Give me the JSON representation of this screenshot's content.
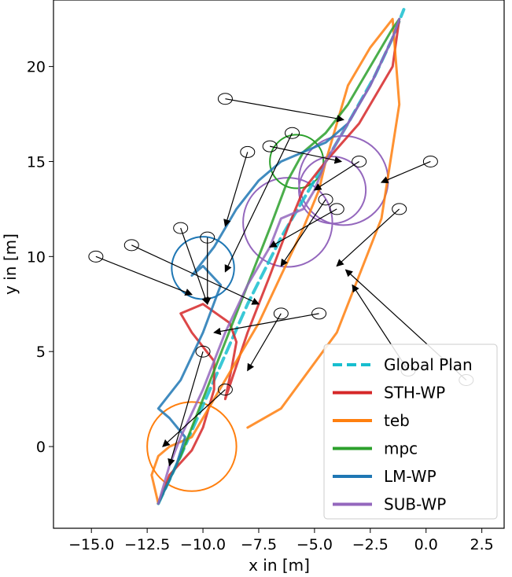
{
  "chart_data": {
    "type": "line",
    "title": "",
    "xlabel": "x in [m]",
    "ylabel": "y in [m]",
    "xlim": [
      -16.7,
      3.5
    ],
    "ylim": [
      -4.3,
      23.5
    ],
    "grid": false,
    "legend_position": "bottom-right",
    "xticks": [
      {
        "value": -15.0,
        "label": "−15.0"
      },
      {
        "value": -12.5,
        "label": "−12.5"
      },
      {
        "value": -10.0,
        "label": "−10.0"
      },
      {
        "value": -7.5,
        "label": "−7.5"
      },
      {
        "value": -5.0,
        "label": "−5.0"
      },
      {
        "value": -2.5,
        "label": "−2.5"
      },
      {
        "value": 0.0,
        "label": "0.0"
      },
      {
        "value": 2.5,
        "label": "2.5"
      }
    ],
    "yticks": [
      {
        "value": 0,
        "label": "0"
      },
      {
        "value": 5,
        "label": "5"
      },
      {
        "value": 10,
        "label": "10"
      },
      {
        "value": 15,
        "label": "15"
      },
      {
        "value": 20,
        "label": "20"
      }
    ],
    "legend": [
      {
        "name": "Global Plan",
        "color": "#17becf",
        "dashed": true
      },
      {
        "name": "STH-WP",
        "color": "#d62728",
        "dashed": false
      },
      {
        "name": "teb",
        "color": "#ff7f0e",
        "dashed": false
      },
      {
        "name": "mpc",
        "color": "#2ca02c",
        "dashed": false
      },
      {
        "name": "LM-WP",
        "color": "#1f77b4",
        "dashed": false
      },
      {
        "name": "SUB-WP",
        "color": "#9467bd",
        "dashed": false
      }
    ],
    "series": [
      {
        "name": "Global Plan",
        "color": "#17becf",
        "dashed": true,
        "x": [
          -12.0,
          -11.0,
          -9.5,
          -8.0,
          -6.5,
          -5.0,
          -3.5,
          -2.3,
          -1.5,
          -1.0
        ],
        "y": [
          -3.0,
          -0.5,
          3.5,
          7.5,
          11.0,
          14.0,
          17.0,
          19.5,
          21.5,
          23.0
        ]
      },
      {
        "name": "STH-WP",
        "color": "#d62728",
        "dashed": false,
        "x": [
          -12.0,
          -11.5,
          -10.5,
          -10.0,
          -9.5,
          -9.5,
          -10.5,
          -11.0,
          -10.0,
          -8.8,
          -8.5,
          -8.7,
          -9.0,
          -8.0,
          -7.0,
          -6.2,
          -5.5,
          -4.5,
          -3.0,
          -1.5,
          -1.2
        ],
        "y": [
          -3.0,
          -1.5,
          -0.2,
          1.0,
          3.0,
          4.5,
          6.0,
          7.0,
          7.5,
          6.5,
          5.5,
          4.2,
          2.5,
          6.0,
          9.0,
          11.5,
          13.5,
          15.0,
          17.0,
          20.0,
          22.5
        ]
      },
      {
        "name": "teb",
        "color": "#ff7f0e",
        "dashed": false,
        "x": [
          -12.0,
          -12.3,
          -12.0,
          -11.5,
          -10.5,
          -9.5,
          -8.5,
          -7.5,
          -6.5,
          -5.5,
          -4.8,
          -4.5,
          -4.0,
          -3.5,
          -2.5,
          -1.5,
          -1.2,
          -2.0,
          -4.0,
          -6.5,
          -8.0
        ],
        "y": [
          -3.0,
          -1.5,
          -0.5,
          0.0,
          0.5,
          2.5,
          4.5,
          6.5,
          9.0,
          11.5,
          13.5,
          15.0,
          17.0,
          19.0,
          21.0,
          22.5,
          18.0,
          12.0,
          6.0,
          2.0,
          1.0
        ]
      },
      {
        "name": "mpc",
        "color": "#2ca02c",
        "dashed": false,
        "x": [
          -12.0,
          -11.0,
          -10.0,
          -9.0,
          -8.0,
          -7.0,
          -6.2,
          -5.5,
          -4.5,
          -3.5,
          -2.5,
          -1.5,
          -1.2
        ],
        "y": [
          -3.0,
          -0.5,
          2.5,
          5.5,
          8.5,
          11.5,
          14.0,
          15.5,
          16.5,
          18.0,
          20.0,
          22.0,
          22.5
        ]
      },
      {
        "name": "LM-WP",
        "color": "#1f77b4",
        "dashed": false,
        "x": [
          -12.0,
          -11.2,
          -10.8,
          -11.5,
          -12.0,
          -11.0,
          -10.0,
          -9.2,
          -10.0,
          -10.5,
          -9.5,
          -8.5,
          -7.5,
          -6.5,
          -5.5,
          -4.5,
          -3.5,
          -2.5,
          -1.5,
          -1.2
        ],
        "y": [
          -3.0,
          -1.0,
          0.5,
          1.5,
          2.0,
          3.5,
          6.0,
          8.5,
          9.5,
          9.0,
          10.5,
          12.5,
          14.0,
          15.0,
          15.5,
          16.0,
          17.0,
          19.0,
          21.5,
          22.5
        ]
      },
      {
        "name": "SUB-WP",
        "color": "#9467bd",
        "dashed": false,
        "x": [
          -12.0,
          -11.5,
          -11.0,
          -10.0,
          -9.0,
          -8.0,
          -7.0,
          -6.5,
          -5.5,
          -5.0,
          -4.5,
          -3.5,
          -2.5,
          -1.5,
          -1.2
        ],
        "y": [
          -3.0,
          -1.0,
          0.5,
          3.0,
          6.0,
          8.5,
          10.5,
          12.0,
          12.5,
          13.5,
          15.0,
          17.0,
          19.0,
          21.5,
          22.5
        ]
      }
    ],
    "circles": [
      {
        "x": -10.5,
        "y": 0.0,
        "r": 2.0,
        "color": "#ff7f0e"
      },
      {
        "x": -10.0,
        "y": 9.4,
        "r": 1.4,
        "color": "#1f77b4"
      },
      {
        "x": -6.2,
        "y": 11.8,
        "r": 2.0,
        "color": "#9467bd"
      },
      {
        "x": -3.7,
        "y": 14.0,
        "r": 2.0,
        "color": "#9467bd"
      },
      {
        "x": -5.8,
        "y": 15.0,
        "r": 1.2,
        "color": "#2ca02c"
      },
      {
        "x": -4.2,
        "y": 13.5,
        "r": 1.5,
        "color": "#9467bd"
      }
    ],
    "waypoint_markers": [
      {
        "from": [
          -14.8,
          10.0
        ],
        "to": [
          -10.5,
          8.0
        ]
      },
      {
        "from": [
          -13.2,
          10.6
        ],
        "to": [
          -7.5,
          7.5
        ]
      },
      {
        "from": [
          -11.0,
          11.5
        ],
        "to": [
          -9.8,
          7.5
        ]
      },
      {
        "from": [
          -9.8,
          11.0
        ],
        "to": [
          -9.8,
          7.5
        ]
      },
      {
        "from": [
          -9.0,
          18.3
        ],
        "to": [
          -3.7,
          17.2
        ]
      },
      {
        "from": [
          -8.0,
          15.5
        ],
        "to": [
          -9.0,
          11.6
        ]
      },
      {
        "from": [
          -7.0,
          15.8
        ],
        "to": [
          -3.8,
          15.0
        ]
      },
      {
        "from": [
          -6.0,
          16.5
        ],
        "to": [
          -9.0,
          9.2
        ]
      },
      {
        "from": [
          -6.5,
          7.0
        ],
        "to": [
          -8.0,
          4.0
        ]
      },
      {
        "from": [
          -4.8,
          7.0
        ],
        "to": [
          -9.5,
          6.0
        ]
      },
      {
        "from": [
          0.2,
          15.0
        ],
        "to": [
          -2.0,
          13.9
        ]
      },
      {
        "from": [
          -1.2,
          12.5
        ],
        "to": [
          -4.0,
          9.5
        ]
      },
      {
        "from": [
          1.8,
          3.5
        ],
        "to": [
          -3.6,
          9.3
        ]
      },
      {
        "from": [
          -0.8,
          4.0
        ],
        "to": [
          -3.3,
          8.5
        ]
      },
      {
        "from": [
          -10.0,
          5.0
        ],
        "to": [
          -11.5,
          -1.0
        ]
      },
      {
        "from": [
          -9.0,
          3.0
        ],
        "to": [
          -11.8,
          0.0
        ]
      },
      {
        "from": [
          -4.0,
          12.5
        ],
        "to": [
          -7.0,
          10.5
        ]
      },
      {
        "from": [
          -3.0,
          15.0
        ],
        "to": [
          -5.0,
          13.5
        ]
      },
      {
        "from": [
          -4.5,
          13.0
        ],
        "to": [
          -6.5,
          9.5
        ]
      }
    ]
  }
}
